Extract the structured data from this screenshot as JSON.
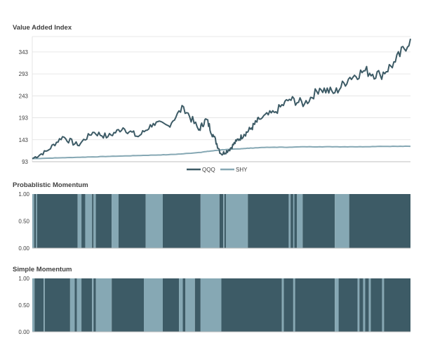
{
  "colors": {
    "dark": "#3d5b66",
    "light": "#86a8b4",
    "grid": "#e0e0e0",
    "axis": "#bfbfbf",
    "text": "#404040"
  },
  "chart_data": [
    {
      "type": "line",
      "title": "Value Added Index",
      "xlabel": "",
      "ylabel": "",
      "ylim": [
        93,
        378
      ],
      "yticks": [
        "93",
        "143",
        "193",
        "243",
        "293",
        "343"
      ],
      "grid": true,
      "legend_position": "bottom-center",
      "x": [
        0,
        0.04,
        0.08,
        0.12,
        0.16,
        0.2,
        0.24,
        0.28,
        0.32,
        0.36,
        0.4,
        0.44,
        0.46,
        0.48,
        0.5,
        0.52,
        0.54,
        0.56,
        0.58,
        0.6,
        0.64,
        0.68,
        0.72,
        0.76,
        0.8,
        0.84,
        0.88,
        0.92,
        0.96,
        1.0
      ],
      "series": [
        {
          "name": "QQQ",
          "color": "#3d5b66",
          "values": [
            100,
            118,
            150,
            130,
            160,
            150,
            170,
            150,
            180,
            175,
            218,
            165,
            190,
            150,
            110,
            120,
            140,
            155,
            170,
            190,
            205,
            235,
            225,
            260,
            250,
            285,
            300,
            290,
            320,
            373
          ]
        },
        {
          "name": "SHY",
          "color": "#86a8b4",
          "values": [
            100,
            101,
            102,
            103,
            104,
            105,
            106,
            107,
            108,
            109,
            111,
            114,
            116,
            118,
            120,
            121,
            122,
            123,
            124,
            125,
            126,
            126,
            127,
            127,
            127,
            127,
            127,
            128,
            128,
            128
          ]
        }
      ]
    },
    {
      "type": "area",
      "title": "Probablistic Momentum",
      "ylim": [
        0,
        1
      ],
      "yticks": [
        "0.00",
        "0.50",
        "1.00"
      ],
      "description_series": "QQQ allocation (1) vs SHY (0)",
      "segments": [
        {
          "start": 0.0,
          "end": 0.005,
          "value": 0
        },
        {
          "start": 0.005,
          "end": 0.01,
          "value": 1
        },
        {
          "start": 0.01,
          "end": 0.013,
          "value": 0
        },
        {
          "start": 0.013,
          "end": 0.12,
          "value": 1
        },
        {
          "start": 0.12,
          "end": 0.13,
          "value": 0
        },
        {
          "start": 0.13,
          "end": 0.14,
          "value": 1
        },
        {
          "start": 0.14,
          "end": 0.158,
          "value": 0
        },
        {
          "start": 0.158,
          "end": 0.162,
          "value": 1
        },
        {
          "start": 0.162,
          "end": 0.168,
          "value": 0
        },
        {
          "start": 0.168,
          "end": 0.21,
          "value": 1
        },
        {
          "start": 0.21,
          "end": 0.228,
          "value": 0
        },
        {
          "start": 0.228,
          "end": 0.3,
          "value": 1
        },
        {
          "start": 0.3,
          "end": 0.345,
          "value": 0
        },
        {
          "start": 0.345,
          "end": 0.445,
          "value": 1
        },
        {
          "start": 0.445,
          "end": 0.495,
          "value": 0
        },
        {
          "start": 0.495,
          "end": 0.505,
          "value": 1
        },
        {
          "start": 0.505,
          "end": 0.508,
          "value": 0
        },
        {
          "start": 0.508,
          "end": 0.512,
          "value": 1
        },
        {
          "start": 0.512,
          "end": 0.57,
          "value": 0
        },
        {
          "start": 0.57,
          "end": 0.678,
          "value": 1
        },
        {
          "start": 0.678,
          "end": 0.683,
          "value": 0
        },
        {
          "start": 0.683,
          "end": 0.69,
          "value": 1
        },
        {
          "start": 0.69,
          "end": 0.693,
          "value": 0
        },
        {
          "start": 0.693,
          "end": 0.7,
          "value": 1
        },
        {
          "start": 0.7,
          "end": 0.715,
          "value": 0
        },
        {
          "start": 0.715,
          "end": 0.8,
          "value": 1
        },
        {
          "start": 0.8,
          "end": 0.838,
          "value": 0
        },
        {
          "start": 0.838,
          "end": 1.0,
          "value": 1
        }
      ]
    },
    {
      "type": "area",
      "title": "Simple Momentum",
      "ylim": [
        0,
        1
      ],
      "yticks": [
        "0.00",
        "0.50",
        "1.00"
      ],
      "segments": [
        {
          "start": 0.0,
          "end": 0.006,
          "value": 0
        },
        {
          "start": 0.006,
          "end": 0.03,
          "value": 1
        },
        {
          "start": 0.03,
          "end": 0.033,
          "value": 0
        },
        {
          "start": 0.033,
          "end": 0.1,
          "value": 1
        },
        {
          "start": 0.1,
          "end": 0.112,
          "value": 0
        },
        {
          "start": 0.112,
          "end": 0.118,
          "value": 1
        },
        {
          "start": 0.118,
          "end": 0.13,
          "value": 0
        },
        {
          "start": 0.13,
          "end": 0.158,
          "value": 1
        },
        {
          "start": 0.158,
          "end": 0.162,
          "value": 0
        },
        {
          "start": 0.162,
          "end": 0.168,
          "value": 1
        },
        {
          "start": 0.168,
          "end": 0.21,
          "value": 0
        },
        {
          "start": 0.21,
          "end": 0.295,
          "value": 1
        },
        {
          "start": 0.295,
          "end": 0.345,
          "value": 0
        },
        {
          "start": 0.345,
          "end": 0.388,
          "value": 1
        },
        {
          "start": 0.388,
          "end": 0.398,
          "value": 0
        },
        {
          "start": 0.398,
          "end": 0.405,
          "value": 1
        },
        {
          "start": 0.405,
          "end": 0.43,
          "value": 0
        },
        {
          "start": 0.43,
          "end": 0.445,
          "value": 1
        },
        {
          "start": 0.445,
          "end": 0.5,
          "value": 0
        },
        {
          "start": 0.5,
          "end": 0.66,
          "value": 1
        },
        {
          "start": 0.66,
          "end": 0.665,
          "value": 0
        },
        {
          "start": 0.665,
          "end": 0.69,
          "value": 1
        },
        {
          "start": 0.69,
          "end": 0.695,
          "value": 0
        },
        {
          "start": 0.695,
          "end": 0.8,
          "value": 1
        },
        {
          "start": 0.8,
          "end": 0.81,
          "value": 0
        },
        {
          "start": 0.81,
          "end": 0.86,
          "value": 1
        },
        {
          "start": 0.86,
          "end": 0.865,
          "value": 0
        },
        {
          "start": 0.865,
          "end": 0.875,
          "value": 1
        },
        {
          "start": 0.875,
          "end": 0.88,
          "value": 0
        },
        {
          "start": 0.88,
          "end": 0.89,
          "value": 1
        },
        {
          "start": 0.89,
          "end": 0.895,
          "value": 0
        },
        {
          "start": 0.895,
          "end": 0.925,
          "value": 1
        },
        {
          "start": 0.925,
          "end": 0.93,
          "value": 0
        },
        {
          "start": 0.93,
          "end": 1.0,
          "value": 1
        }
      ]
    }
  ]
}
